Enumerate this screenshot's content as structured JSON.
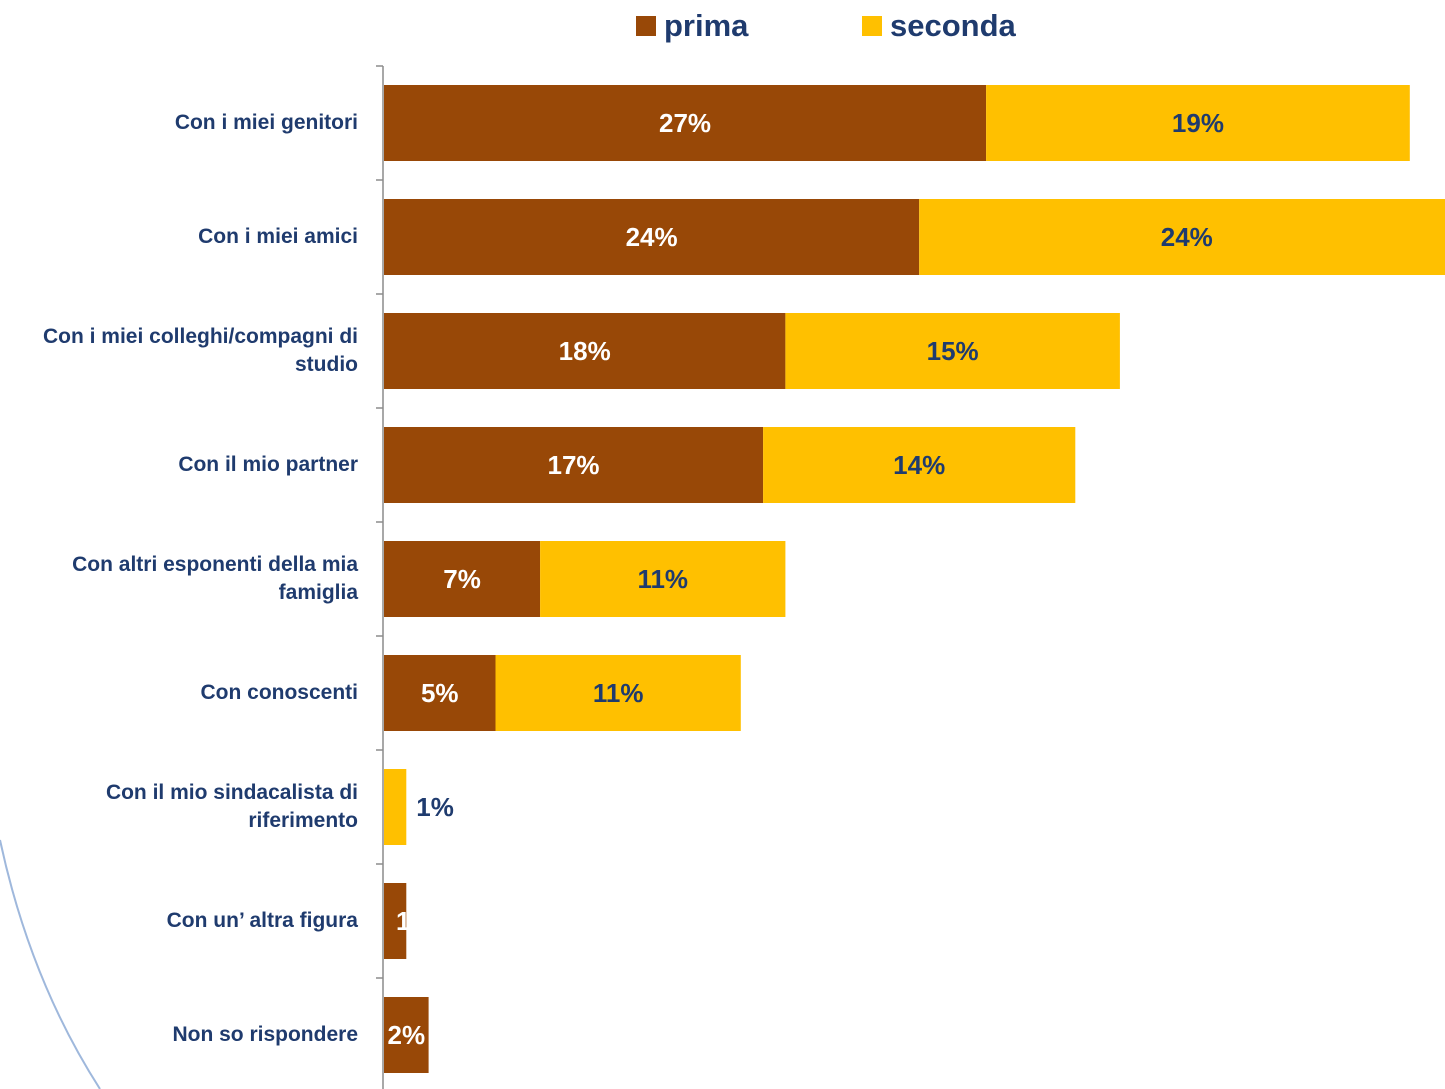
{
  "chart_data": {
    "type": "bar",
    "orientation": "horizontal",
    "stacked": true,
    "title": "",
    "xlabel": "",
    "ylabel": "",
    "categories": [
      "Con i miei genitori",
      "Con i miei amici",
      "Con i miei colleghi/compagni di studio",
      "Con il mio partner",
      "Con altri esponenti della mia famiglia",
      "Con conoscenti",
      "Con il mio sindacalista di riferimento",
      "Con un’ altra figura",
      "Non so rispondere"
    ],
    "series": [
      {
        "name": "prima",
        "color": "#984807",
        "label_color": "#ffffff",
        "values": [
          27,
          24,
          18,
          17,
          7,
          5,
          0,
          1,
          2
        ],
        "labels": [
          "27%",
          "24%",
          "18%",
          "17%",
          "7%",
          "5%",
          "",
          "1",
          "2%"
        ]
      },
      {
        "name": "seconda",
        "color": "#ffc000",
        "label_color": "#1f3b6e",
        "values": [
          19,
          24,
          15,
          14,
          11,
          11,
          1,
          0,
          0
        ],
        "labels": [
          "19%",
          "24%",
          "15%",
          "14%",
          "11%",
          "11%",
          "1%",
          "",
          ""
        ]
      }
    ],
    "xlim": [
      0,
      48
    ],
    "legend_position": "top",
    "grid": false
  }
}
